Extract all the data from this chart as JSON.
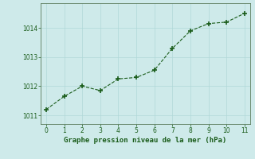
{
  "x": [
    0,
    1,
    2,
    3,
    4,
    5,
    6,
    7,
    8,
    9,
    10,
    11
  ],
  "y": [
    1011.2,
    1011.65,
    1012.0,
    1011.85,
    1012.25,
    1012.3,
    1012.55,
    1013.3,
    1013.9,
    1014.15,
    1014.2,
    1014.5
  ],
  "xlim": [
    -0.3,
    11.3
  ],
  "ylim": [
    1010.7,
    1014.85
  ],
  "yticks": [
    1011,
    1012,
    1013,
    1014
  ],
  "xticks": [
    0,
    1,
    2,
    3,
    4,
    5,
    6,
    7,
    8,
    9,
    10,
    11
  ],
  "line_color": "#1a5c1a",
  "marker": "+",
  "marker_color": "#1a5c1a",
  "bg_color": "#ceeaea",
  "grid_color": "#b0d8d8",
  "xlabel": "Graphe pression niveau de la mer (hPa)",
  "xlabel_color": "#1a5c1a",
  "tick_color": "#1a5c1a",
  "axis_color": "#5a7a5a",
  "xlabel_fontsize": 6.5,
  "tick_fontsize": 5.5
}
